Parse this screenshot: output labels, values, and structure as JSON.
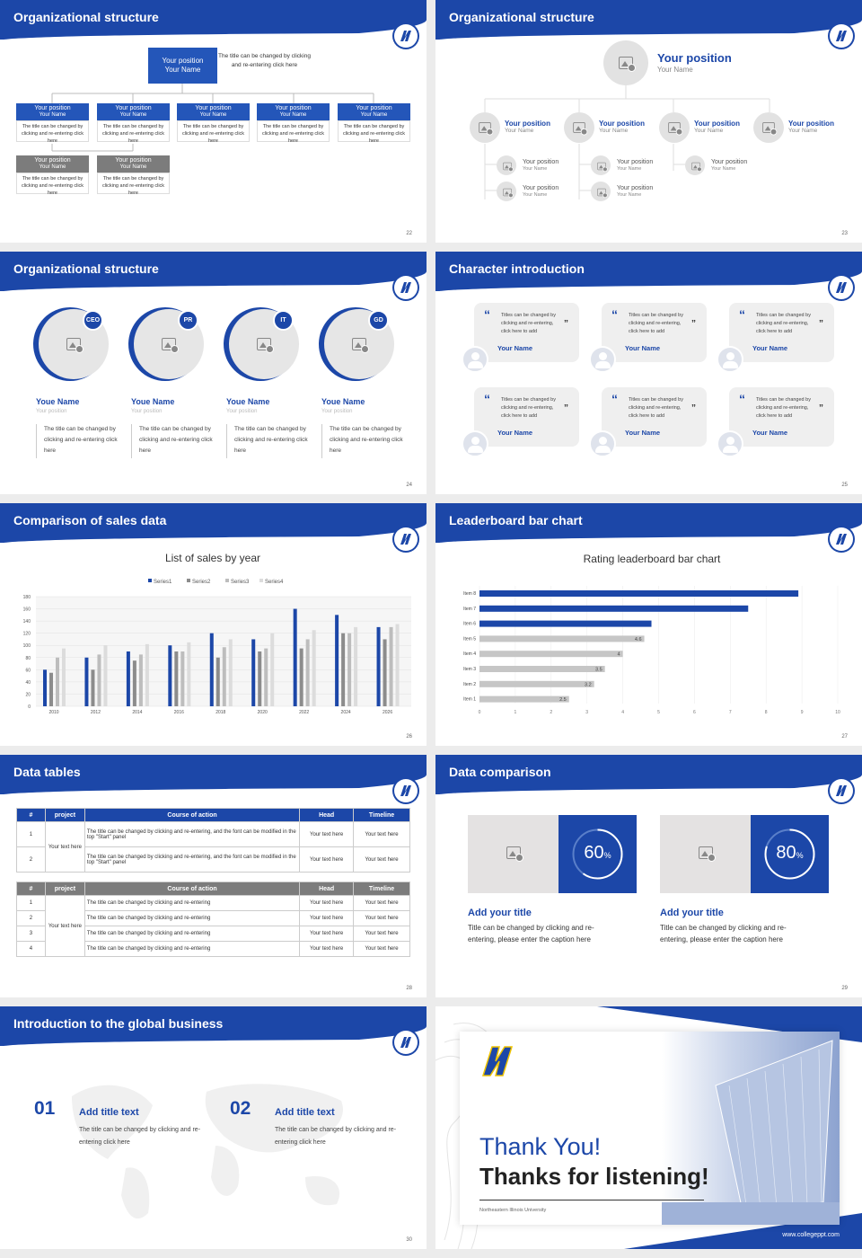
{
  "slides": {
    "s22": {
      "title": "Organizational structure",
      "page": "22",
      "top": {
        "pos": "Your position",
        "name": "Your Name",
        "desc": "The title can be changed by clicking and re-entering click here"
      },
      "box_pos": "Your position",
      "box_name": "Your Name",
      "box_desc": "The title can be changed by clicking and re-entering click here"
    },
    "s23": {
      "title": "Organizational structure",
      "page": "23",
      "pos": "Your position",
      "name": "Your Name"
    },
    "s24": {
      "title": "Organizational structure",
      "page": "24",
      "people": [
        {
          "tag": "CEO"
        },
        {
          "tag": "PR"
        },
        {
          "tag": "IT"
        },
        {
          "tag": "GD"
        }
      ],
      "name": "Youe Name",
      "position": "Your position",
      "desc": "The title can be changed by clicking and re-entering click here"
    },
    "s25": {
      "title": "Character introduction",
      "page": "25",
      "quote": "Titles can be changed by clicking and re-entering, click here to add",
      "name": "Your Name"
    },
    "s26": {
      "title": "Comparison of sales data",
      "page": "26"
    },
    "s27": {
      "title": "Leaderboard bar chart",
      "page": "27"
    },
    "s28": {
      "title": "Data tables",
      "page": "28",
      "headers": [
        "#",
        "project",
        "Course of action",
        "Head",
        "Timeline"
      ],
      "t1": {
        "proj": "Your text here",
        "rows": [
          {
            "n": "1",
            "action": "The title can be changed by clicking and re-entering, and the font can be modified in the top \"Start\" panel",
            "head": "Your text here",
            "time": "Your text here"
          },
          {
            "n": "2",
            "action": "The title can be changed by clicking and re-entering, and the font can be modified in the top \"Start\" panel",
            "head": "Your text here",
            "time": "Your text here"
          }
        ]
      },
      "t2": {
        "proj": "Your text here",
        "rows": [
          {
            "n": "1",
            "action": "The title can be changed by clicking and re-entering",
            "head": "Your text here",
            "time": "Your text here"
          },
          {
            "n": "2",
            "action": "The title can be changed by clicking and re-entering",
            "head": "Your text here",
            "time": "Your text here"
          },
          {
            "n": "3",
            "action": "The title can be changed by clicking and re-entering",
            "head": "Your text here",
            "time": "Your text here"
          },
          {
            "n": "4",
            "action": "The title can be changed by clicking and re-entering",
            "head": "Your text here",
            "time": "Your text here"
          }
        ]
      }
    },
    "s29": {
      "title": "Data comparison",
      "page": "29",
      "cards": [
        {
          "pct": "60",
          "sign": "%",
          "ttl": "Add your title",
          "txt": "Title can be changed by clicking and re-entering, please enter the caption here"
        },
        {
          "pct": "80",
          "sign": "%",
          "ttl": "Add your title",
          "txt": "Title can be changed by clicking and re-entering, please enter the caption here"
        }
      ]
    },
    "s30": {
      "title": "Introduction to the global business",
      "page": "30",
      "items": [
        {
          "num": "01",
          "ttl": "Add title text",
          "txt": "The title can be changed by clicking and re-entering click here"
        },
        {
          "num": "02",
          "ttl": "Add title text",
          "txt": "The title can be changed by clicking and re-entering click here"
        }
      ]
    },
    "s31": {
      "thanks": "Thank You!",
      "listening": "Thanks for listening!",
      "school": "Northeastern Illinois University",
      "site": "www.collegeppt.com"
    }
  },
  "chart_data": [
    {
      "type": "bar",
      "title": "List of sales by year",
      "categories": [
        "2010",
        "2012",
        "2014",
        "2016",
        "2018",
        "2020",
        "2022",
        "2024",
        "2026"
      ],
      "series": [
        {
          "name": "Series1",
          "color": "#1c47a8",
          "values": [
            60,
            80,
            90,
            100,
            120,
            110,
            160,
            150,
            130
          ]
        },
        {
          "name": "Series2",
          "color": "#8c8c8c",
          "values": [
            55,
            60,
            75,
            90,
            80,
            90,
            95,
            120,
            110
          ]
        },
        {
          "name": "Series3",
          "color": "#bdbdbd",
          "values": [
            80,
            85,
            85,
            90,
            97,
            95,
            110,
            120,
            130
          ]
        },
        {
          "name": "Series4",
          "color": "#dcdcdc",
          "values": [
            95,
            100,
            102,
            105,
            110,
            120,
            125,
            130,
            135
          ]
        }
      ],
      "ylim": [
        0,
        180
      ],
      "yticks": [
        0,
        20,
        40,
        60,
        80,
        100,
        120,
        140,
        160,
        180
      ],
      "legend": "top"
    },
    {
      "type": "bar",
      "orientation": "horizontal",
      "title": "Rating leaderboard bar chart",
      "categories": [
        "Item 8",
        "Item 7",
        "Item 6",
        "Item 5",
        "Item 4",
        "Item 3",
        "Item 2",
        "Item 1"
      ],
      "values": [
        8.9,
        7.5,
        4.8,
        4.6,
        4,
        3.5,
        3.2,
        2.5
      ],
      "labels": [
        "",
        "",
        "",
        "4.6",
        "4",
        "3.5",
        "3.2",
        "2.5"
      ],
      "highlight": [
        true,
        true,
        true,
        false,
        false,
        false,
        false,
        false
      ],
      "xlim": [
        0,
        10
      ],
      "xticks": [
        0,
        1,
        2,
        3,
        4,
        5,
        6,
        7,
        8,
        9,
        10
      ]
    }
  ]
}
